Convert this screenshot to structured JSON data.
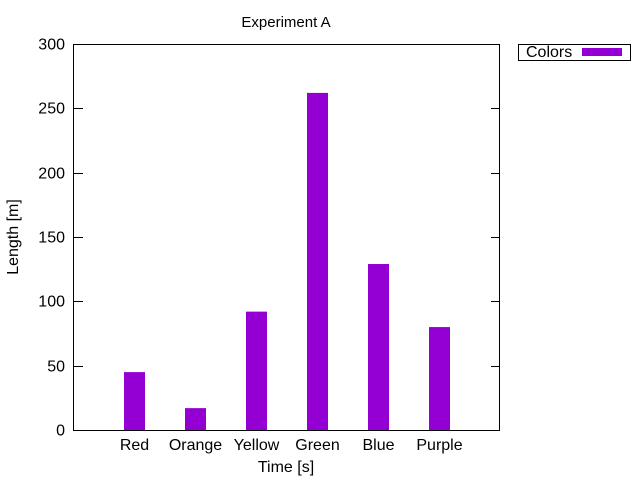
{
  "chart_data": {
    "type": "bar",
    "title": "Experiment A",
    "xlabel": "Time [s]",
    "ylabel": "Length [m]",
    "categories": [
      "Red",
      "Orange",
      "Yellow",
      "Green",
      "Blue",
      "Purple"
    ],
    "series": [
      {
        "name": "Colors",
        "values": [
          45,
          17,
          92,
          262,
          129,
          80
        ],
        "color": "#9400d3"
      }
    ],
    "ylim": [
      0,
      300
    ],
    "yticks": [
      "0",
      "50",
      "100",
      "150",
      "200",
      "250",
      "300"
    ],
    "grid": false,
    "legend_position": "top-right, outside plot"
  }
}
